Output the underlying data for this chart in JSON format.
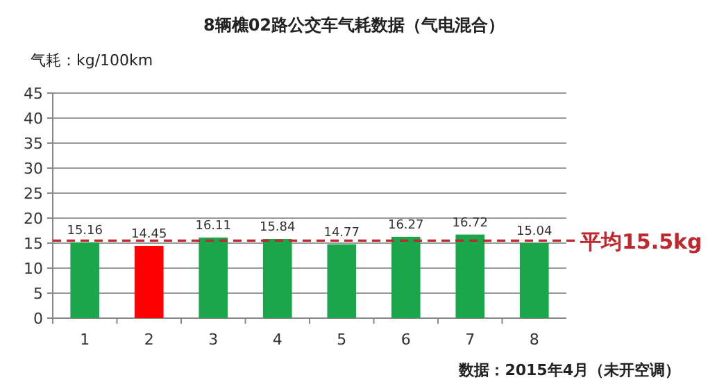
{
  "chart_data": {
    "type": "bar",
    "title": "8辆樵02路公交车气耗数据（气电混合）",
    "ylabel": "气耗：kg/100km",
    "categories": [
      "1",
      "2",
      "3",
      "4",
      "5",
      "6",
      "7",
      "8"
    ],
    "values": [
      15.16,
      14.45,
      16.11,
      15.84,
      14.77,
      16.27,
      16.72,
      15.04
    ],
    "colors": [
      "#1aa64a",
      "#ff0000",
      "#1aa64a",
      "#1aa64a",
      "#1aa64a",
      "#1aa64a",
      "#1aa64a",
      "#1aa64a"
    ],
    "ylim": [
      0,
      45
    ],
    "yticks": [
      0,
      5,
      10,
      15,
      20,
      25,
      30,
      35,
      40,
      45
    ],
    "grid": "y",
    "data_labels": true,
    "ref_lines": [
      {
        "axis": "y",
        "value": 15.5,
        "label": "平均15.5kg",
        "color": "#c0282d",
        "line_style": "dashed"
      }
    ],
    "annotations": [
      "数据：2015年4月（未开空调）"
    ]
  }
}
